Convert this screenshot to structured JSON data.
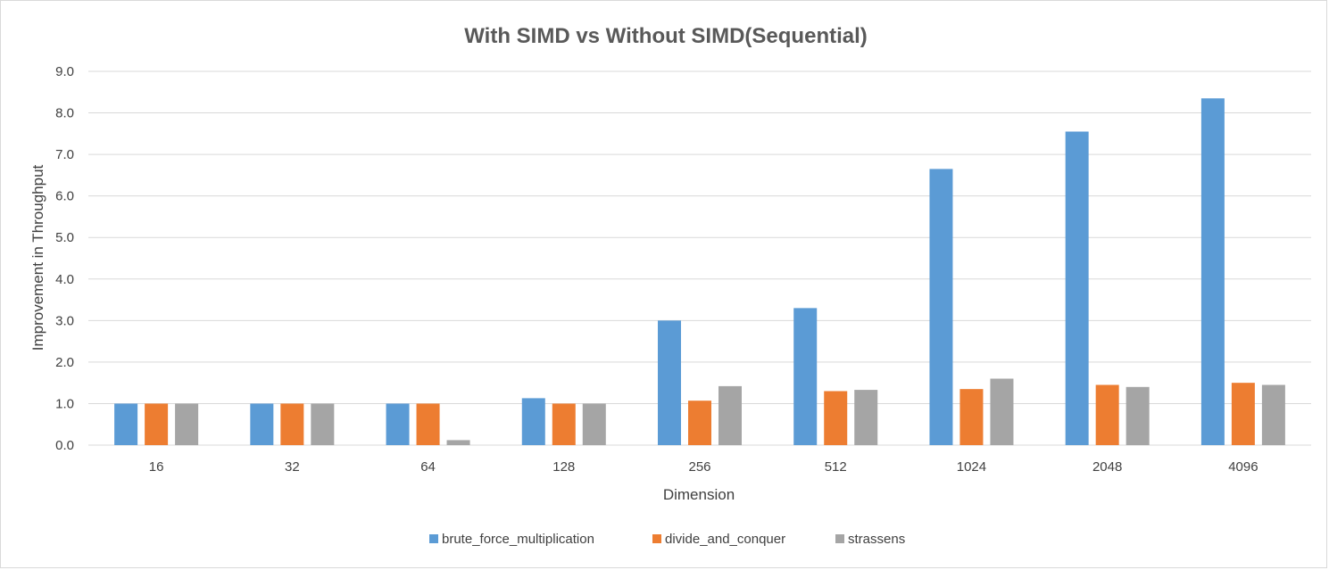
{
  "chart_data": {
    "type": "bar",
    "title": "With SIMD vs Without SIMD(Sequential)",
    "xlabel": "Dimension",
    "ylabel": "Improvement in Throughput",
    "categories": [
      "16",
      "32",
      "64",
      "128",
      "256",
      "512",
      "1024",
      "2048",
      "4096"
    ],
    "ylim": [
      0,
      9
    ],
    "yticks": [
      "0.0",
      "1.0",
      "2.0",
      "3.0",
      "4.0",
      "5.0",
      "6.0",
      "7.0",
      "8.0",
      "9.0"
    ],
    "grid": true,
    "legend_position": "bottom",
    "series": [
      {
        "name": "brute_force_multiplication",
        "color": "#5b9bd5",
        "values": [
          1.0,
          1.0,
          1.0,
          1.13,
          3.0,
          3.3,
          6.65,
          7.55,
          8.35
        ]
      },
      {
        "name": "divide_and_conquer",
        "color": "#ed7d31",
        "values": [
          1.0,
          1.0,
          1.0,
          1.0,
          1.07,
          1.3,
          1.35,
          1.45,
          1.5
        ]
      },
      {
        "name": "strassens",
        "color": "#a5a5a5",
        "values": [
          1.0,
          1.0,
          0.12,
          1.0,
          1.42,
          1.33,
          1.6,
          1.4,
          1.45
        ]
      }
    ]
  }
}
